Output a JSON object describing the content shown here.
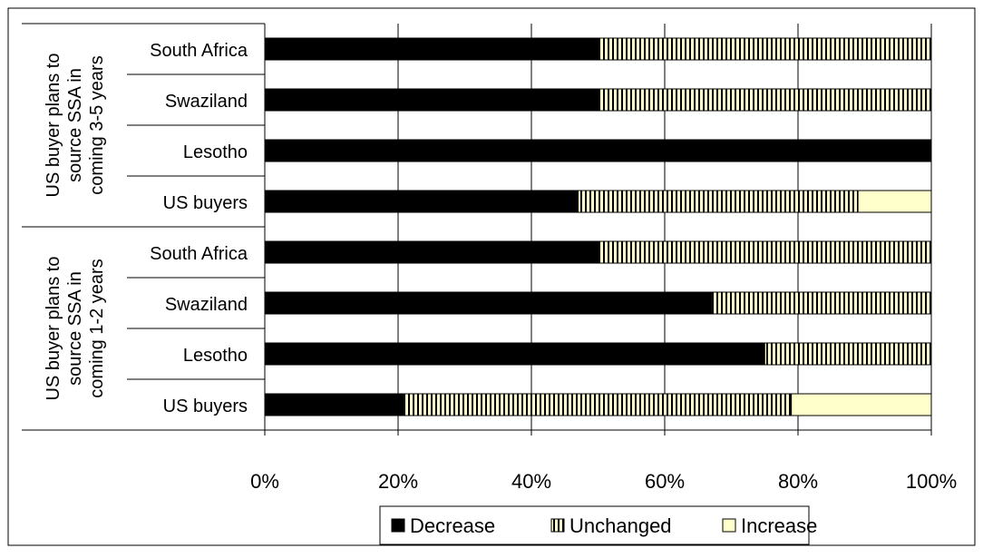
{
  "chart_data": {
    "type": "bar",
    "orientation": "horizontal",
    "stacked": "percent",
    "title": "",
    "xlabel": "",
    "ylabel": "",
    "xlim": [
      0,
      100
    ],
    "x_ticks": [
      "0%",
      "20%",
      "40%",
      "60%",
      "80%",
      "100%"
    ],
    "grid": true,
    "legend_position": "bottom",
    "groups": [
      {
        "label_lines": [
          "US buyer plans to",
          "source SSA in",
          "coming 3-5 years"
        ],
        "categories": [
          "South Africa",
          "Swaziland",
          "Lesotho",
          "US buyers"
        ]
      },
      {
        "label_lines": [
          "US buyer plans to",
          "source SSA in",
          "coming 1-2 years"
        ],
        "categories": [
          "South Africa",
          "Swaziland",
          "Lesotho",
          "US buyers"
        ]
      }
    ],
    "series": [
      {
        "name": "Decrease",
        "color": "#000000",
        "pattern": "solid",
        "values": [
          50,
          50,
          100,
          47,
          50,
          67,
          75,
          21
        ]
      },
      {
        "name": "Unchanged",
        "color": "#ffffcc",
        "pattern": "vertical-stripes",
        "values": [
          50,
          50,
          0,
          42,
          50,
          33,
          25,
          58
        ]
      },
      {
        "name": "Increase",
        "color": "#ffffcc",
        "pattern": "solid",
        "values": [
          0,
          0,
          0,
          11,
          0,
          0,
          0,
          21
        ]
      }
    ]
  }
}
